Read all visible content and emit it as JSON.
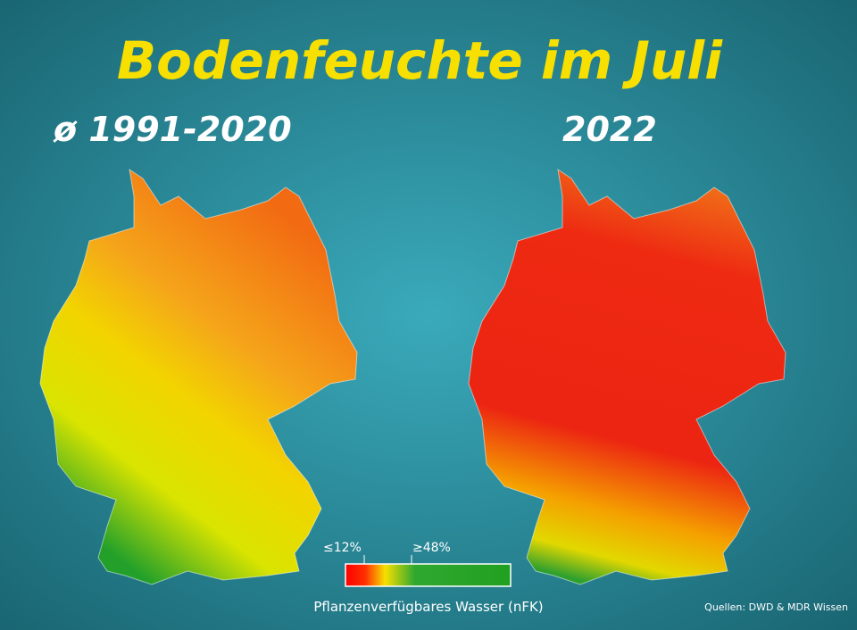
{
  "header": {
    "title": "Bodenfeuchte im Juli"
  },
  "maps": [
    {
      "label": "ø 1991-2020"
    },
    {
      "label": "2022"
    }
  ],
  "legend": {
    "low_label": "≤12%",
    "high_label": "≥48%",
    "caption": "Pflanzenverfügbares Wasser (nFK)"
  },
  "source": "Quellen: DWD & MDR Wissen"
}
